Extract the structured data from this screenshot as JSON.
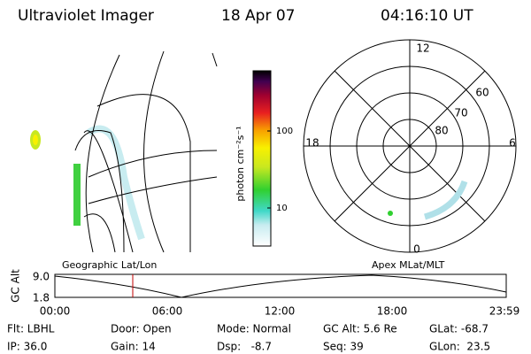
{
  "header": {
    "title": "Ultraviolet Imager",
    "date": "18 Apr 07",
    "time": "04:16:10 UT"
  },
  "colorbar": {
    "label": "photon cm⁻²s⁻¹",
    "ticks": [
      "100",
      "10"
    ]
  },
  "polar": {
    "mlt_labels": [
      "12",
      "18",
      "6",
      "0"
    ],
    "lat_labels": [
      "60",
      "70",
      "80"
    ]
  },
  "panel_labels": {
    "map": "Geographic Lat/Lon",
    "polar": "Apex MLat/MLT"
  },
  "altitude_plot": {
    "ylabel": "GC Alt",
    "yticks": [
      "9.0",
      "1.8"
    ],
    "xticks": [
      "00:00",
      "06:00",
      "12:00",
      "18:00",
      "23:59"
    ]
  },
  "status": [
    [
      "Flt: LBHL",
      "Door: Open",
      "Mode: Normal",
      "GC Alt: 5.6 Re",
      "GLat: -68.7"
    ],
    [
      "IP: 36.0",
      "Gain: 14",
      "Dsp:   -8.7",
      "Seq: 39",
      "GLon:  23.5"
    ]
  ]
}
